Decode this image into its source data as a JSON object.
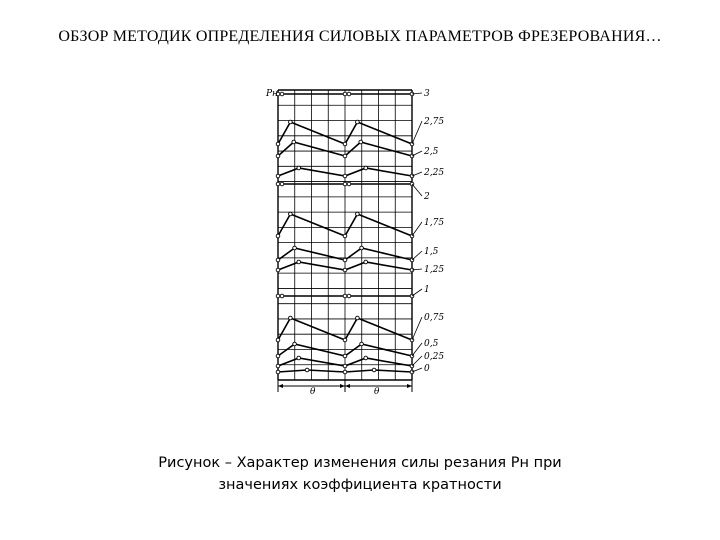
{
  "header": {
    "title": "ОБЗОР МЕТОДИК ОПРЕДЕЛЕНИЯ СИЛОВЫХ ПАРАМЕТРОВ ФРЕЗЕРОВАНИЯ…"
  },
  "figure": {
    "axis_label": "Pн",
    "bottom_labels": [
      "θ",
      "θ"
    ],
    "curve_labels": [
      "3",
      "2,75",
      "2,5",
      "2,25",
      "2",
      "1,75",
      "1,5",
      "1,25",
      "1",
      "0,75",
      "0,5",
      "0,25",
      "0"
    ]
  },
  "caption": {
    "line1": "Рисунок – Характер изменения силы резания Pн при",
    "line2": "значениях коэффициента кратности"
  }
}
